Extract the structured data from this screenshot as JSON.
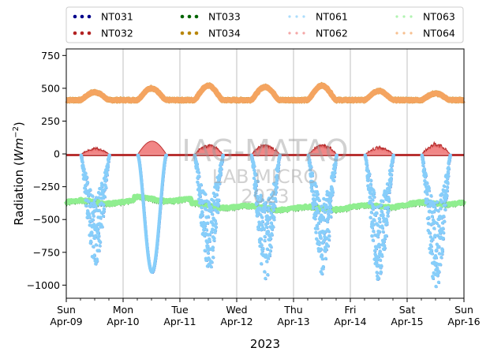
{
  "chart_data": {
    "type": "scatter",
    "title": "",
    "xlabel": "2023",
    "ylabel": "Radiation (Wm⁻²)",
    "ylabel_main": "Radiation (",
    "ylabel_unit": "Wm",
    "ylabel_exp": "−2",
    "ylabel_close": ")",
    "ylim": [
      -1100,
      800
    ],
    "xlim_days": [
      0,
      7
    ],
    "grid": "vertical",
    "legend_placement": "top, above plot, 4 columns",
    "x_ticks": [
      {
        "line1": "Sun",
        "line2": "Apr-09"
      },
      {
        "line1": "Mon",
        "line2": "Apr-10"
      },
      {
        "line1": "Tue",
        "line2": "Apr-11"
      },
      {
        "line1": "Wed",
        "line2": "Apr-12"
      },
      {
        "line1": "Thu",
        "line2": "Apr-13"
      },
      {
        "line1": "Fri",
        "line2": "Apr-14"
      },
      {
        "line1": "Sat",
        "line2": "Apr-15"
      },
      {
        "line1": "Sun",
        "line2": "Apr-16"
      }
    ],
    "y_ticks": [
      "750",
      "500",
      "250",
      "0",
      "−250",
      "−500",
      "−750",
      "−1000"
    ],
    "y_tick_values": [
      750,
      500,
      250,
      0,
      -250,
      -500,
      -750,
      -1000
    ],
    "series": [
      {
        "name": "NT031",
        "color": "#00008b",
        "kind": "shortwave-down",
        "min_values": [
          -840,
          -890,
          -900,
          -960,
          -920,
          -970,
          -1020
        ]
      },
      {
        "name": "NT032",
        "color": "#b22222",
        "kind": "shortwave-up",
        "max_values": [
          50,
          100,
          80,
          80,
          80,
          60,
          90
        ]
      },
      {
        "name": "NT033",
        "color": "#006400",
        "kind": "longwave-down",
        "mean": -390
      },
      {
        "name": "NT034",
        "color": "#b8860b",
        "kind": "longwave-up",
        "base": 410,
        "peak_values": [
          470,
          500,
          520,
          510,
          520,
          480,
          460
        ]
      },
      {
        "name": "NT061",
        "color": "#87cefa",
        "kind": "shortwave-down"
      },
      {
        "name": "NT062",
        "color": "#f08080",
        "kind": "shortwave-up"
      },
      {
        "name": "NT063",
        "color": "#90ee90",
        "kind": "longwave-down"
      },
      {
        "name": "NT064",
        "color": "#f4a460",
        "kind": "longwave-up"
      }
    ],
    "watermark": {
      "line1": "IAG-MATAO",
      "line2": "LAB MICRO",
      "line3": "2023"
    }
  }
}
